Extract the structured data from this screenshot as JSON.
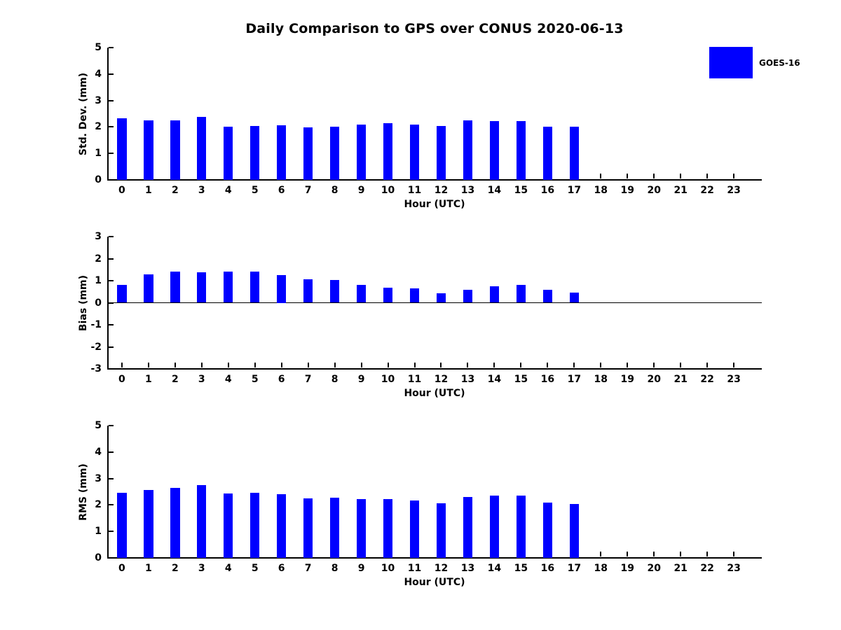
{
  "title": "Daily Comparison to GPS over CONUS 2020-06-13",
  "legend": {
    "label": "GOES-16",
    "swatch_color": "#0000ff",
    "position": "upper-right-outside"
  },
  "colors": {
    "bar": "#0000ff",
    "axis": "#000000",
    "text": "#000000",
    "background": "#ffffff"
  },
  "chart_data": [
    {
      "type": "bar",
      "name": "std-dev",
      "series_name": "GOES-16",
      "ylabel": "Std. Dev. (mm)",
      "xlabel": "Hour (UTC)",
      "categories": [
        "0",
        "1",
        "2",
        "3",
        "4",
        "5",
        "6",
        "7",
        "8",
        "9",
        "10",
        "11",
        "12",
        "13",
        "14",
        "15",
        "16",
        "17",
        "18",
        "19",
        "20",
        "21",
        "22",
        "23"
      ],
      "values": [
        2.32,
        2.25,
        2.25,
        2.37,
        2.0,
        2.03,
        2.06,
        1.98,
        2.02,
        2.1,
        2.14,
        2.08,
        2.03,
        2.25,
        2.21,
        2.21,
        2.0,
        2.0,
        null,
        null,
        null,
        null,
        null,
        null
      ],
      "ylim": [
        0,
        5
      ],
      "yticks": [
        "0",
        "1",
        "2",
        "3",
        "4",
        "5"
      ],
      "grid": false
    },
    {
      "type": "bar",
      "name": "bias",
      "series_name": "GOES-16",
      "ylabel": "Bias (mm)",
      "xlabel": "Hour (UTC)",
      "categories": [
        "0",
        "1",
        "2",
        "3",
        "4",
        "5",
        "6",
        "7",
        "8",
        "9",
        "10",
        "11",
        "12",
        "13",
        "14",
        "15",
        "16",
        "17",
        "18",
        "19",
        "20",
        "21",
        "22",
        "23"
      ],
      "values": [
        0.8,
        1.28,
        1.42,
        1.38,
        1.4,
        1.4,
        1.25,
        1.05,
        1.02,
        0.8,
        0.67,
        0.66,
        0.42,
        0.58,
        0.76,
        0.82,
        0.6,
        0.45,
        null,
        null,
        null,
        null,
        null,
        null
      ],
      "ylim": [
        -3,
        3
      ],
      "yticks": [
        "-3",
        "-2",
        "-1",
        "0",
        "1",
        "2",
        "3"
      ],
      "zero_line": true,
      "grid": false
    },
    {
      "type": "bar",
      "name": "rms",
      "series_name": "GOES-16",
      "ylabel": "RMS (mm)",
      "xlabel": "Hour (UTC)",
      "categories": [
        "0",
        "1",
        "2",
        "3",
        "4",
        "5",
        "6",
        "7",
        "8",
        "9",
        "10",
        "11",
        "12",
        "13",
        "14",
        "15",
        "16",
        "17",
        "18",
        "19",
        "20",
        "21",
        "22",
        "23"
      ],
      "values": [
        2.46,
        2.56,
        2.64,
        2.74,
        2.43,
        2.46,
        2.4,
        2.25,
        2.27,
        2.22,
        2.23,
        2.18,
        2.07,
        2.3,
        2.35,
        2.35,
        2.1,
        2.05,
        null,
        null,
        null,
        null,
        null,
        null
      ],
      "ylim": [
        0,
        5
      ],
      "yticks": [
        "0",
        "1",
        "2",
        "3",
        "4",
        "5"
      ],
      "grid": false
    }
  ]
}
